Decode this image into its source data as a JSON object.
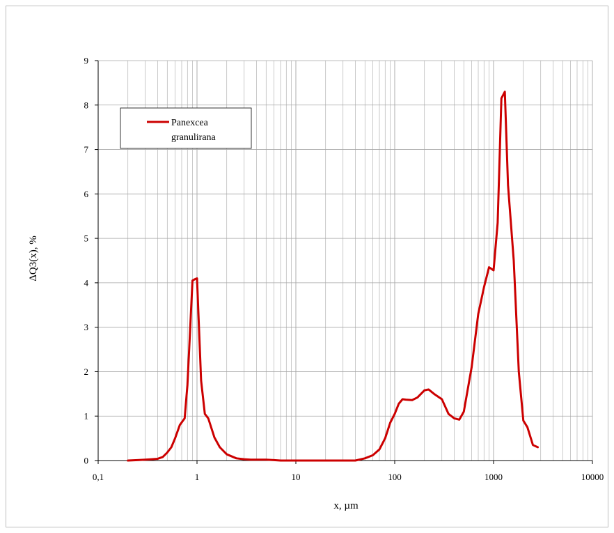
{
  "chart_data": {
    "type": "line",
    "xscale": "log",
    "xlim": [
      0.1,
      10000
    ],
    "ylim": [
      0,
      9
    ],
    "grid": true,
    "legend_position": "top-left",
    "xlabel": "x, µm",
    "ylabel": "ΔQ3(x), %",
    "x_tick_labels": [
      "0,1",
      "1",
      "10",
      "100",
      "1000",
      "10000"
    ],
    "y_tick_labels": [
      "0",
      "1",
      "2",
      "3",
      "4",
      "5",
      "6",
      "7",
      "8",
      "9"
    ],
    "colors": {
      "series": "#cc0000",
      "grid": "#a6a6a6",
      "axis": "#000000"
    },
    "series": [
      {
        "name": "Panexcea granulirana",
        "legend_line1": "Panexcea",
        "legend_line2": "granulirana",
        "x": [
          0.2,
          0.25,
          0.3,
          0.35,
          0.4,
          0.45,
          0.5,
          0.55,
          0.6,
          0.67,
          0.75,
          0.8,
          0.85,
          0.9,
          0.95,
          1.0,
          1.1,
          1.2,
          1.3,
          1.5,
          1.7,
          2.0,
          2.5,
          3,
          3.5,
          4,
          5,
          6,
          7,
          8,
          10,
          15,
          20,
          30,
          40,
          50,
          60,
          70,
          80,
          90,
          100,
          110,
          120,
          130,
          150,
          170,
          200,
          220,
          250,
          300,
          350,
          400,
          450,
          500,
          600,
          700,
          800,
          900,
          1000,
          1100,
          1200,
          1300,
          1400,
          1600,
          1800,
          2000,
          2200,
          2500,
          2800
        ],
        "y": [
          0.0,
          0.01,
          0.02,
          0.03,
          0.04,
          0.08,
          0.18,
          0.3,
          0.5,
          0.8,
          0.95,
          1.7,
          2.9,
          4.05,
          4.08,
          4.1,
          1.8,
          1.05,
          0.95,
          0.52,
          0.3,
          0.14,
          0.05,
          0.03,
          0.02,
          0.02,
          0.02,
          0.01,
          0.0,
          0.0,
          0.0,
          0.0,
          0.0,
          0.0,
          0.0,
          0.05,
          0.12,
          0.25,
          0.5,
          0.85,
          1.05,
          1.28,
          1.38,
          1.37,
          1.36,
          1.42,
          1.58,
          1.6,
          1.5,
          1.38,
          1.05,
          0.95,
          0.92,
          1.1,
          2.1,
          3.3,
          3.9,
          4.35,
          4.28,
          5.35,
          8.15,
          8.3,
          6.2,
          4.5,
          2.0,
          0.9,
          0.75,
          0.35,
          0.3
        ]
      }
    ]
  }
}
